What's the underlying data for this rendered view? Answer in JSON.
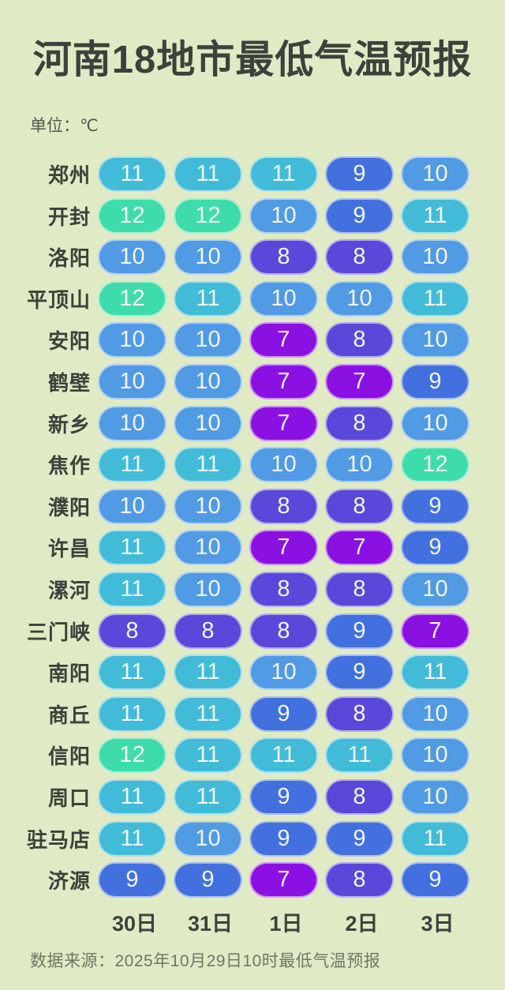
{
  "title": "河南18地市最低气温预报",
  "unit_label": "单位：℃",
  "source_label": "数据来源：2025年10月29日10时最低气温预报",
  "colors": {
    "background": "#e0eac4",
    "title_text": "#3a423b",
    "pill_text": "#f3f7ef",
    "source_text": "#6f7767"
  },
  "chart_data": {
    "type": "heatmap",
    "title": "河南18地市最低气温预报",
    "unit": "℃",
    "x_labels": [
      "30日",
      "31日",
      "1日",
      "2日",
      "3日"
    ],
    "y_labels": [
      "郑州",
      "开封",
      "洛阳",
      "平顶山",
      "安阳",
      "鹤壁",
      "新乡",
      "焦作",
      "濮阳",
      "许昌",
      "漯河",
      "三门峡",
      "南阳",
      "商丘",
      "信阳",
      "周口",
      "驻马店",
      "济源"
    ],
    "values": [
      [
        11,
        11,
        11,
        9,
        10
      ],
      [
        12,
        12,
        10,
        9,
        11
      ],
      [
        10,
        10,
        8,
        8,
        10
      ],
      [
        12,
        11,
        10,
        10,
        11
      ],
      [
        10,
        10,
        7,
        8,
        10
      ],
      [
        10,
        10,
        7,
        7,
        9
      ],
      [
        10,
        10,
        7,
        8,
        10
      ],
      [
        11,
        11,
        10,
        10,
        12
      ],
      [
        10,
        10,
        8,
        8,
        9
      ],
      [
        11,
        10,
        7,
        7,
        9
      ],
      [
        11,
        10,
        8,
        8,
        10
      ],
      [
        8,
        8,
        8,
        9,
        7
      ],
      [
        11,
        11,
        10,
        9,
        11
      ],
      [
        11,
        11,
        9,
        8,
        10
      ],
      [
        12,
        11,
        11,
        11,
        10
      ],
      [
        11,
        11,
        9,
        8,
        10
      ],
      [
        11,
        10,
        9,
        9,
        11
      ],
      [
        9,
        9,
        7,
        8,
        9
      ]
    ],
    "color_scale": {
      "7": "#8b10e2",
      "8": "#5948d9",
      "9": "#4270de",
      "10": "#519ae4",
      "11": "#42bbd8",
      "12": "#3fdcab"
    },
    "value_range": [
      7,
      12
    ],
    "source": "数据来源：2025年10月29日10时最低气温预报",
    "legend_position": "none",
    "grid": false
  }
}
